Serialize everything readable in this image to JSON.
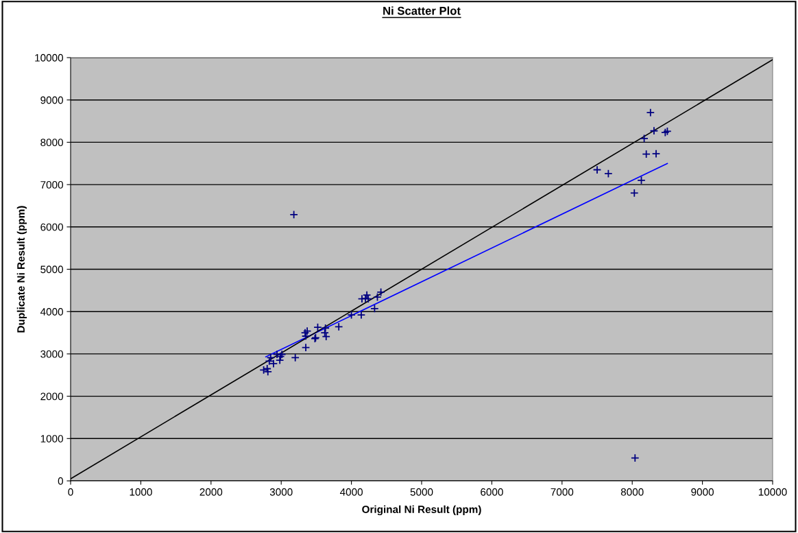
{
  "chart_data": {
    "type": "scatter",
    "title": "Ni Scatter Plot",
    "xlabel": "Original Ni Result (ppm)",
    "ylabel": "Duplicate Ni Result (ppm)",
    "xlim": [
      0,
      10000
    ],
    "ylim": [
      0,
      10000
    ],
    "xticks": [
      0,
      1000,
      2000,
      3000,
      4000,
      5000,
      6000,
      7000,
      8000,
      9000,
      10000
    ],
    "yticks": [
      0,
      1000,
      2000,
      3000,
      4000,
      5000,
      6000,
      7000,
      8000,
      9000,
      10000
    ],
    "grid": "y",
    "legend": false,
    "series": [
      {
        "marker": "cross",
        "color": "#000080",
        "x": [
          2750,
          2800,
          2810,
          2830,
          2850,
          2890,
          2940,
          2980,
          2990,
          3010,
          3200,
          3350,
          3340,
          3370,
          3350,
          3480,
          3490,
          3520,
          3620,
          3640,
          3630,
          3820,
          4000,
          4140,
          4150,
          4200,
          4220,
          4240,
          4330,
          4370,
          4420,
          8260,
          8310,
          8470,
          8500,
          8170,
          8200,
          8340,
          7500,
          7660,
          8130,
          8030,
          3180,
          8040
        ],
        "values": [
          2620,
          2650,
          2580,
          2830,
          2910,
          2770,
          2990,
          2850,
          2940,
          2990,
          2910,
          3150,
          3500,
          3540,
          3420,
          3360,
          3380,
          3630,
          3500,
          3410,
          3610,
          3640,
          3920,
          3920,
          4300,
          4310,
          4390,
          4300,
          4070,
          4340,
          4460,
          8700,
          8270,
          8230,
          8260,
          8090,
          7720,
          7730,
          7350,
          7260,
          7100,
          6800,
          6290,
          540
        ]
      },
      {
        "type": "line",
        "marker": "none",
        "color": "#0000ff",
        "x": [
          2780,
          8500
        ],
        "values": [
          2930,
          7500
        ]
      },
      {
        "type": "line",
        "marker": "none",
        "color": "#000000",
        "x": [
          0,
          10000
        ],
        "values": [
          50,
          9950
        ]
      }
    ]
  }
}
